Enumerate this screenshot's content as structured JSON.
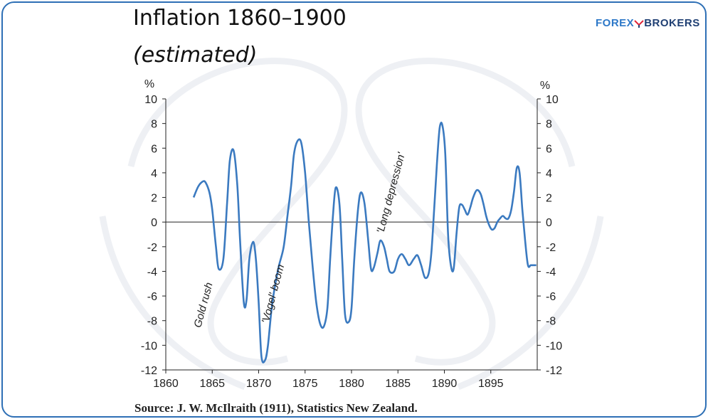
{
  "header": {
    "title": "Inflation 1860–1900",
    "subtitle": "(estimated)"
  },
  "brand": {
    "part1": "FOREX",
    "part2": "BROKERS",
    "colors": {
      "part1": "#2d78c8",
      "part2": "#1f3f73"
    }
  },
  "footer": {
    "source": "Source: J. W. McIlraith (1911), Statistics New Zealand."
  },
  "chart_data": {
    "type": "line",
    "title": "Inflation 1860–1900",
    "subtitle": "(estimated)",
    "ylabel_left": "%",
    "ylabel_right": "%",
    "xlim": [
      1860,
      1900
    ],
    "ylim": [
      -12,
      10
    ],
    "x_ticks": [
      1860,
      1865,
      1870,
      1875,
      1880,
      1885,
      1890,
      1895
    ],
    "y_ticks": [
      10,
      8,
      6,
      4,
      2,
      0,
      -2,
      -4,
      -6,
      -8,
      -10,
      -12
    ],
    "grid": false,
    "zero_line": true,
    "line_color": "#3b7ac0",
    "series": [
      {
        "x": [
          1863,
          1863.5,
          1864,
          1864.3,
          1864.7,
          1865,
          1865.4,
          1865.7,
          1866.2,
          1866.6,
          1866.9,
          1867.3,
          1867.7,
          1868,
          1868.4,
          1868.7,
          1869,
          1869.4,
          1869.7,
          1870,
          1870.3,
          1870.7,
          1871,
          1871.4,
          1871.8,
          1872.2,
          1872.7,
          1873.1,
          1873.5,
          1873.8,
          1874.2,
          1874.6,
          1875,
          1875.4,
          1875.8,
          1876.2,
          1876.6,
          1877,
          1877.4,
          1877.7,
          1878,
          1878.3,
          1878.7,
          1879,
          1879.3,
          1879.7,
          1880,
          1880.3,
          1880.7,
          1881,
          1881.4,
          1881.8,
          1882.1,
          1882.4,
          1882.8,
          1883.1,
          1883.5,
          1883.8,
          1884.1,
          1884.6,
          1885,
          1885.4,
          1885.8,
          1886.2,
          1886.7,
          1887.1,
          1887.5,
          1887.9,
          1888.3,
          1888.6,
          1888.9,
          1889.2,
          1889.5,
          1889.8,
          1890.1,
          1890.4,
          1890.7,
          1891,
          1891.3,
          1891.6,
          1891.9,
          1892.2,
          1892.5,
          1892.8,
          1893.1,
          1893.5,
          1893.9,
          1894.2,
          1894.5,
          1894.8,
          1895.1,
          1895.4,
          1895.7,
          1896,
          1896.3,
          1896.6,
          1896.9,
          1897.2,
          1897.5,
          1897.8,
          1898.1,
          1898.4,
          1898.7,
          1899,
          1899.3,
          1899.6,
          1899.9
        ],
        "y": [
          2.0,
          2.9,
          3.3,
          3.2,
          2.4,
          1.0,
          -2.0,
          -3.8,
          -3.0,
          1.5,
          5.0,
          5.8,
          3.0,
          -1.5,
          -6.5,
          -6.3,
          -3.0,
          -1.6,
          -3.0,
          -6.5,
          -10.9,
          -11.2,
          -10.0,
          -7.0,
          -5.0,
          -3.5,
          -2.0,
          0.5,
          3.0,
          5.5,
          6.6,
          6.4,
          4.0,
          0.0,
          -3.5,
          -6.5,
          -8.2,
          -8.5,
          -7.0,
          -3.0,
          0.5,
          2.8,
          1.5,
          -3.0,
          -7.5,
          -8.1,
          -7.0,
          -3.0,
          1.0,
          2.4,
          1.5,
          -1.5,
          -3.8,
          -3.7,
          -2.5,
          -1.5,
          -2.0,
          -3.0,
          -4.0,
          -4.0,
          -3.0,
          -2.6,
          -3.0,
          -3.5,
          -3.0,
          -2.7,
          -3.5,
          -4.5,
          -4.2,
          -2.5,
          1.0,
          4.8,
          7.7,
          7.8,
          5.5,
          -1.0,
          -3.5,
          -3.8,
          -1.0,
          1.2,
          1.4,
          1.0,
          0.6,
          1.2,
          2.0,
          2.6,
          2.3,
          1.5,
          0.5,
          -0.2,
          -0.6,
          -0.5,
          0.0,
          0.3,
          0.5,
          0.3,
          0.3,
          1.0,
          2.5,
          4.4,
          4.0,
          1.0,
          -1.5,
          -3.5,
          -3.5,
          -3.5,
          -3.5
        ]
      }
    ],
    "annotations": [
      {
        "text": "Gold rush",
        "x": 1864.4,
        "y": -6.8,
        "angle": -75
      },
      {
        "text": "'Vogel' boom",
        "x": 1871.9,
        "y": -5.9,
        "angle": -75
      },
      {
        "text": "'Long depression'",
        "x": 1884.6,
        "y": 2.3,
        "angle": -75
      }
    ]
  }
}
